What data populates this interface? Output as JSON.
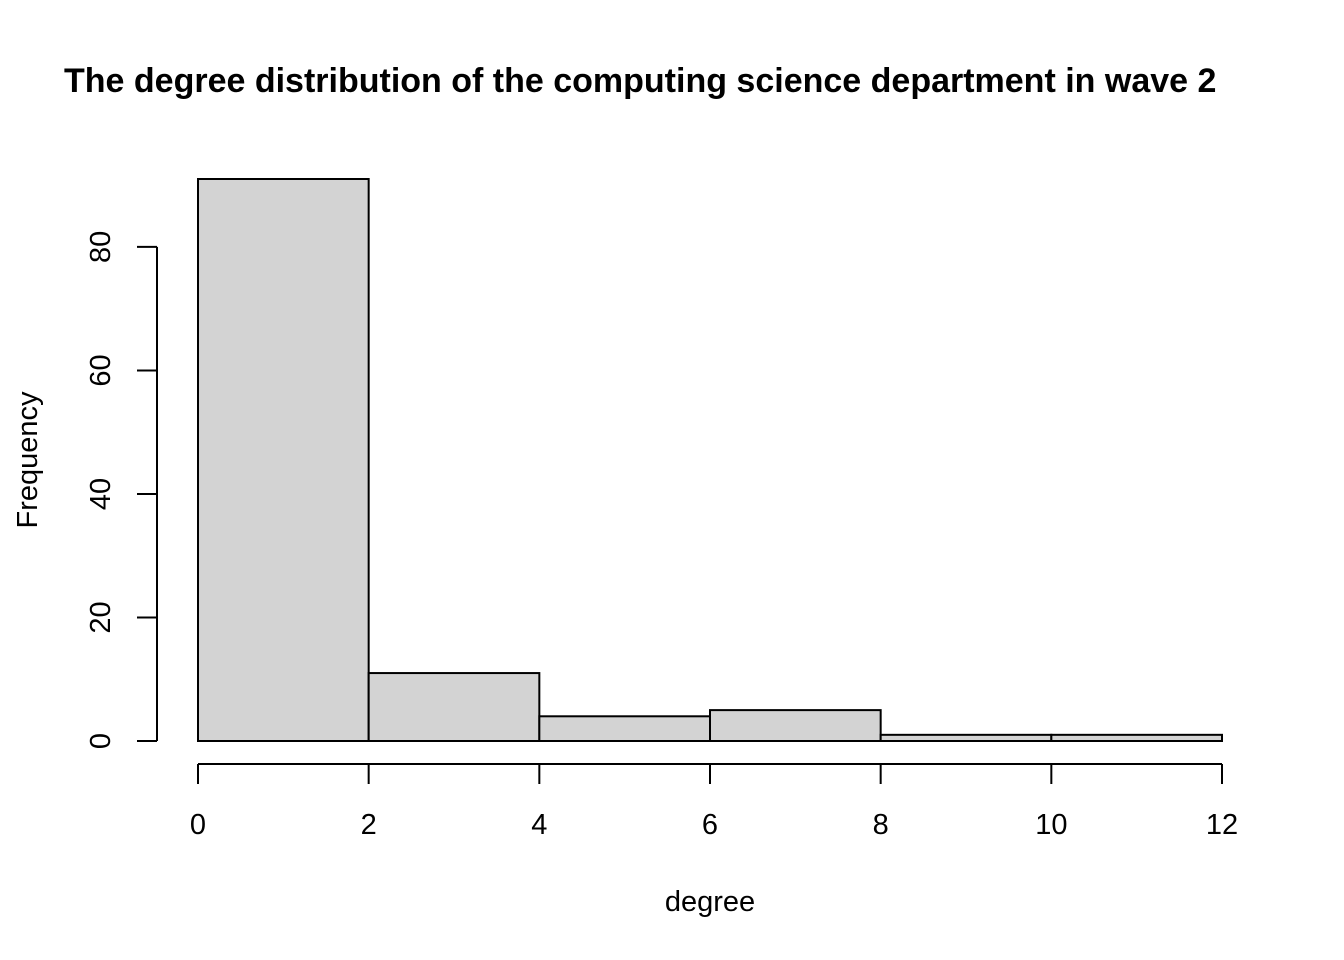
{
  "chart_data": {
    "type": "bar",
    "subtype": "histogram",
    "title": "The degree distribution of the computing science department in wave 2",
    "xlabel": "degree",
    "ylabel": "Frequency",
    "bins": [
      {
        "from": 0,
        "to": 2,
        "count": 91
      },
      {
        "from": 2,
        "to": 4,
        "count": 11
      },
      {
        "from": 4,
        "to": 6,
        "count": 4
      },
      {
        "from": 6,
        "to": 8,
        "count": 5
      },
      {
        "from": 8,
        "to": 10,
        "count": 1
      },
      {
        "from": 10,
        "to": 12,
        "count": 1
      }
    ],
    "x_ticks": [
      0,
      2,
      4,
      6,
      8,
      10,
      12
    ],
    "y_ticks": [
      0,
      20,
      40,
      60,
      80
    ],
    "xlim": [
      0,
      12
    ],
    "ylim": [
      0,
      91
    ],
    "grid": false,
    "legend": "none",
    "colors": {
      "bar_fill": "#d3d3d3",
      "bar_stroke": "#000000",
      "background": "#ffffff"
    }
  }
}
